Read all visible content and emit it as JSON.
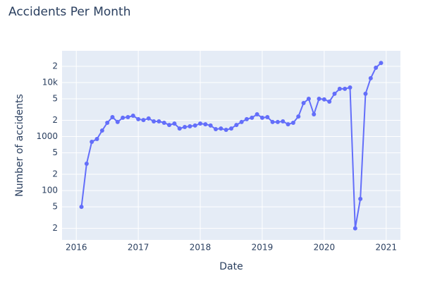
{
  "chart_data": {
    "type": "line",
    "title": "Accidents Per Month",
    "x_label": "Date",
    "y_label": "Number of accidents",
    "x": [
      "2016-01",
      "2016-02",
      "2016-03",
      "2016-04",
      "2016-05",
      "2016-06",
      "2016-07",
      "2016-08",
      "2016-09",
      "2016-10",
      "2016-11",
      "2016-12",
      "2017-01",
      "2017-02",
      "2017-03",
      "2017-04",
      "2017-05",
      "2017-06",
      "2017-07",
      "2017-08",
      "2017-09",
      "2017-10",
      "2017-11",
      "2017-12",
      "2018-01",
      "2018-02",
      "2018-03",
      "2018-04",
      "2018-05",
      "2018-06",
      "2018-07",
      "2018-08",
      "2018-09",
      "2018-10",
      "2018-11",
      "2018-12",
      "2019-01",
      "2019-02",
      "2019-03",
      "2019-04",
      "2019-05",
      "2019-06",
      "2019-07",
      "2019-08",
      "2019-09",
      "2019-10",
      "2019-11",
      "2019-12",
      "2020-01",
      "2020-02",
      "2020-03",
      "2020-04",
      "2020-05",
      "2020-06",
      "2020-07",
      "2020-08",
      "2020-09",
      "2020-10",
      "2020-11"
    ],
    "series": [
      {
        "name": "Accidents",
        "color": "#636efa",
        "values": [
          50,
          314,
          800,
          900,
          1290,
          1800,
          2290,
          1860,
          2230,
          2290,
          2430,
          2100,
          2020,
          2160,
          1910,
          1910,
          1800,
          1640,
          1740,
          1410,
          1500,
          1550,
          1600,
          1740,
          1690,
          1600,
          1370,
          1410,
          1330,
          1410,
          1640,
          1860,
          2100,
          2230,
          2580,
          2230,
          2290,
          1860,
          1860,
          1910,
          1690,
          1800,
          2350,
          4170,
          5000,
          2580,
          5000,
          4870,
          4440,
          6200,
          7650,
          7650,
          8100,
          20,
          70,
          6200,
          12000,
          18800,
          23000
        ]
      }
    ],
    "xlim": [
      2015.77,
      2021.23
    ],
    "xticks": [
      2016,
      2017,
      2018,
      2019,
      2020,
      2021
    ],
    "ylim": [
      12.2,
      38700
    ],
    "log_y": true,
    "yticks": [
      {
        "value": 20,
        "label": "2"
      },
      {
        "value": 50,
        "label": "5"
      },
      100,
      {
        "value": 200,
        "label": "2"
      },
      {
        "value": 500,
        "label": "5"
      },
      1000,
      {
        "value": 2000,
        "label": "2"
      },
      {
        "value": 5000,
        "label": "5"
      },
      {
        "value": 10000,
        "label": "10k"
      },
      {
        "value": 20000,
        "label": "2"
      }
    ],
    "grid": true,
    "background": "#e5ecf6"
  }
}
